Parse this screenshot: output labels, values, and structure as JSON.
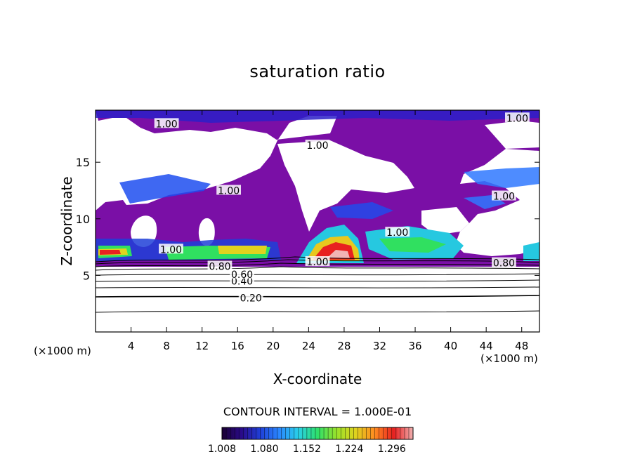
{
  "chart_data": {
    "type": "heatmap",
    "subtype": "filled contour",
    "title": "saturation ratio",
    "xlabel": "X-coordinate",
    "ylabel": "Z-coordinate",
    "x_unit_left": "(×1000 m)",
    "x_unit_right": "(×1000 m)",
    "xlim": [
      0,
      50
    ],
    "ylim": [
      0,
      19.6
    ],
    "x_ticks": [
      4,
      8,
      12,
      16,
      20,
      24,
      28,
      32,
      36,
      40,
      44,
      48
    ],
    "y_ticks": [
      5,
      10,
      15
    ],
    "contour_interval_text": "CONTOUR INTERVAL = 1.000E-01",
    "colorbar": {
      "min": 1.008,
      "max": 1.332,
      "tick_labels": [
        "1.008",
        "1.080",
        "1.152",
        "1.224",
        "1.296"
      ],
      "colors": [
        "#1a0033",
        "#2a0a88",
        "#1f3fd8",
        "#2a88ff",
        "#29d0e8",
        "#2ee06a",
        "#9ae22a",
        "#e0d21e",
        "#ff8a20",
        "#e82020",
        "#f0b0b0"
      ]
    },
    "contour_labels": [
      {
        "text": "0.20",
        "x": 17.5,
        "z": 3.0
      },
      {
        "text": "0.40",
        "x": 16.5,
        "z": 4.5
      },
      {
        "text": "0.60",
        "x": 16.5,
        "z": 5.1
      },
      {
        "text": "0.80",
        "x": 14.0,
        "z": 5.8
      },
      {
        "text": "0.80",
        "x": 46.0,
        "z": 6.1
      },
      {
        "text": "1.00",
        "x": 8.5,
        "z": 7.3
      },
      {
        "text": "1.00",
        "x": 25.0,
        "z": 6.2
      },
      {
        "text": "1.00",
        "x": 34.0,
        "z": 8.8
      },
      {
        "text": "1.00",
        "x": 15.0,
        "z": 12.5
      },
      {
        "text": "1.00",
        "x": 46.0,
        "z": 12.0
      },
      {
        "text": "1.00",
        "x": 8.0,
        "z": 18.4
      },
      {
        "text": "1.00",
        "x": 25.0,
        "z": 16.5
      },
      {
        "text": "1.00",
        "x": 47.5,
        "z": 18.9
      }
    ]
  }
}
